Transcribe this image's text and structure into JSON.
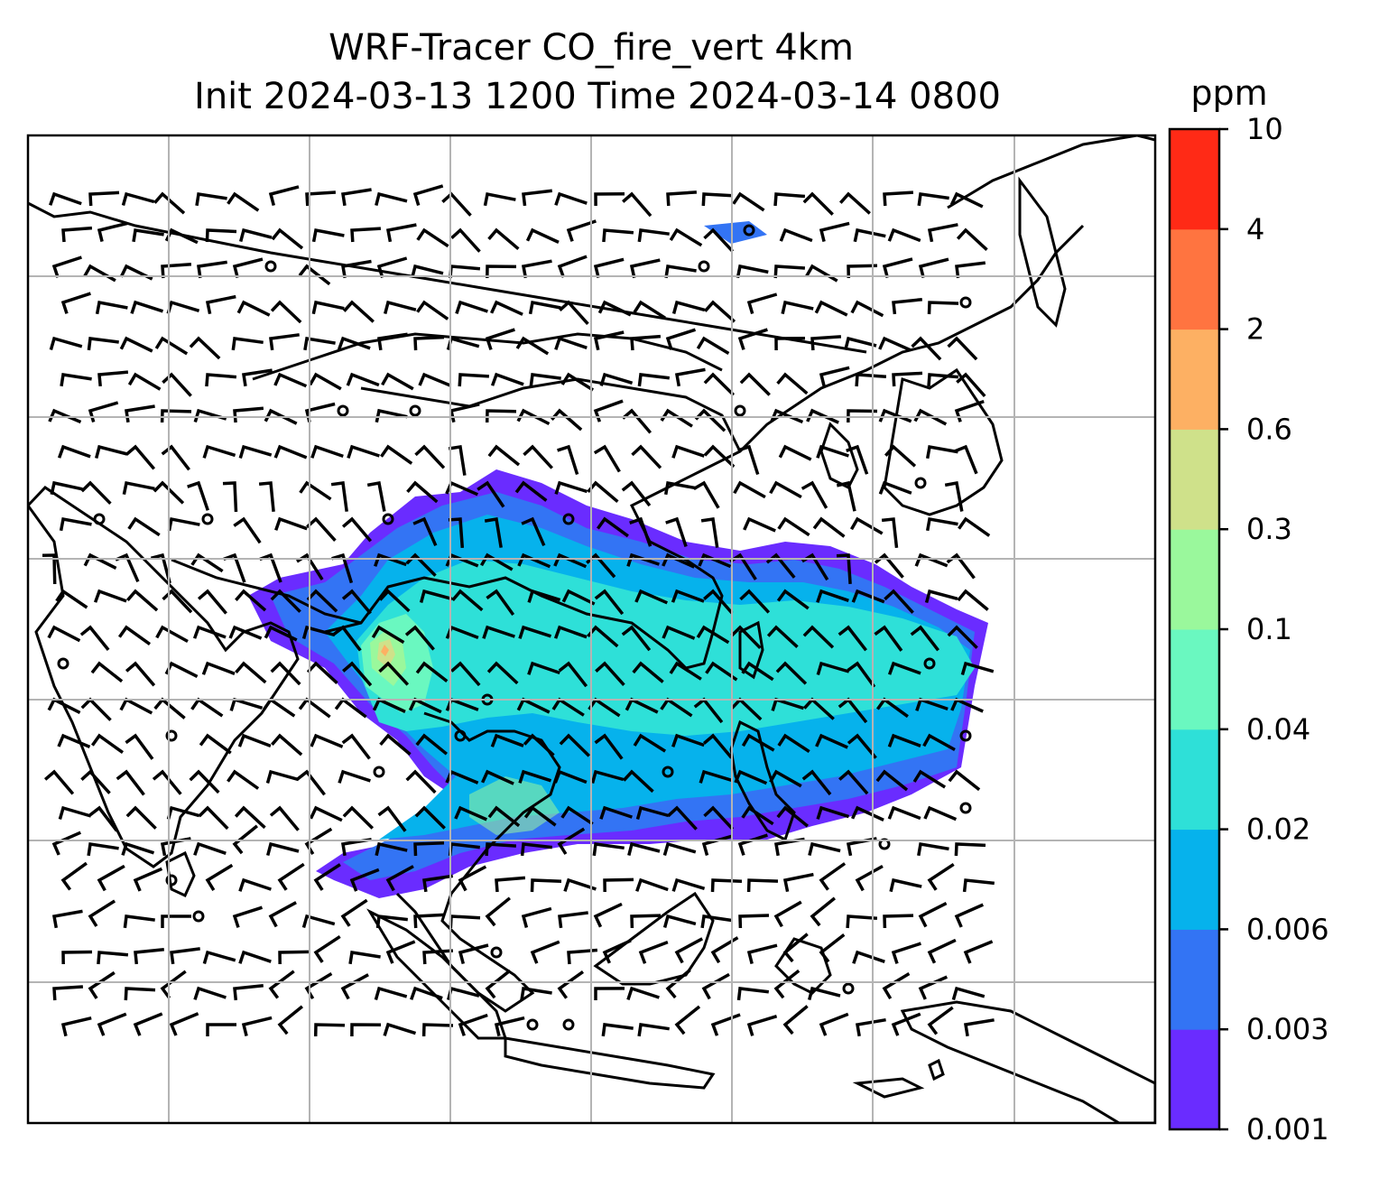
{
  "title": {
    "line1": "WRF-Tracer CO_fire_vert 4km",
    "line2": "Init 2024-03-13 1200 Time 2024-03-14 0800"
  },
  "colorbar": {
    "unit": "ppm",
    "levels": [
      "0.001",
      "0.003",
      "0.006",
      "0.02",
      "0.04",
      "0.1",
      "0.3",
      "0.6",
      "2",
      "4",
      "10"
    ],
    "colors": [
      "#6a2cff",
      "#3374f4",
      "#06b2ec",
      "#2ee0d8",
      "#6af8c0",
      "#9af89c",
      "#cfe18a",
      "#fdb063",
      "#ff7440",
      "#ff2a16"
    ]
  },
  "map": {
    "gridlines": true,
    "features": [
      "coastlines",
      "country-borders",
      "wind-barbs",
      "co-tracer-plume"
    ]
  }
}
